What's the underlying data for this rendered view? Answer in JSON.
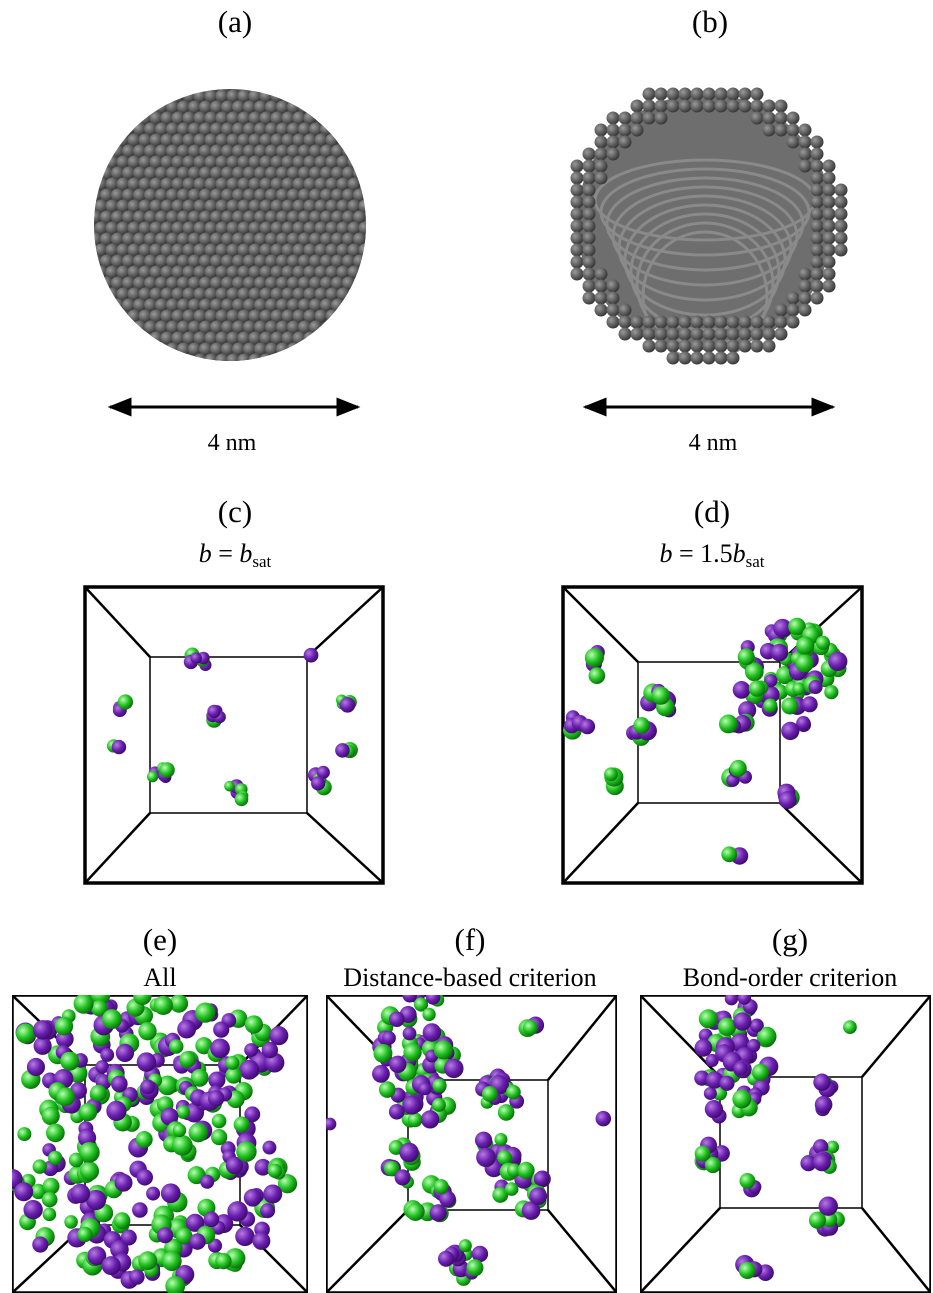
{
  "panels": [
    {
      "label": "(a)",
      "scale": "4 nm"
    },
    {
      "label": "(b)",
      "scale": "4 nm"
    },
    {
      "label": "(c)",
      "caption": [
        "b",
        " = ",
        "b",
        "sat"
      ]
    },
    {
      "label": "(d)",
      "caption": [
        "b",
        " = 1.5",
        "b",
        "sat"
      ]
    },
    {
      "label": "(e)",
      "caption": "All"
    },
    {
      "label": "(f)",
      "caption": "Distance-based criterion"
    },
    {
      "label": "(g)",
      "caption": "Bond-order criterion"
    }
  ]
}
